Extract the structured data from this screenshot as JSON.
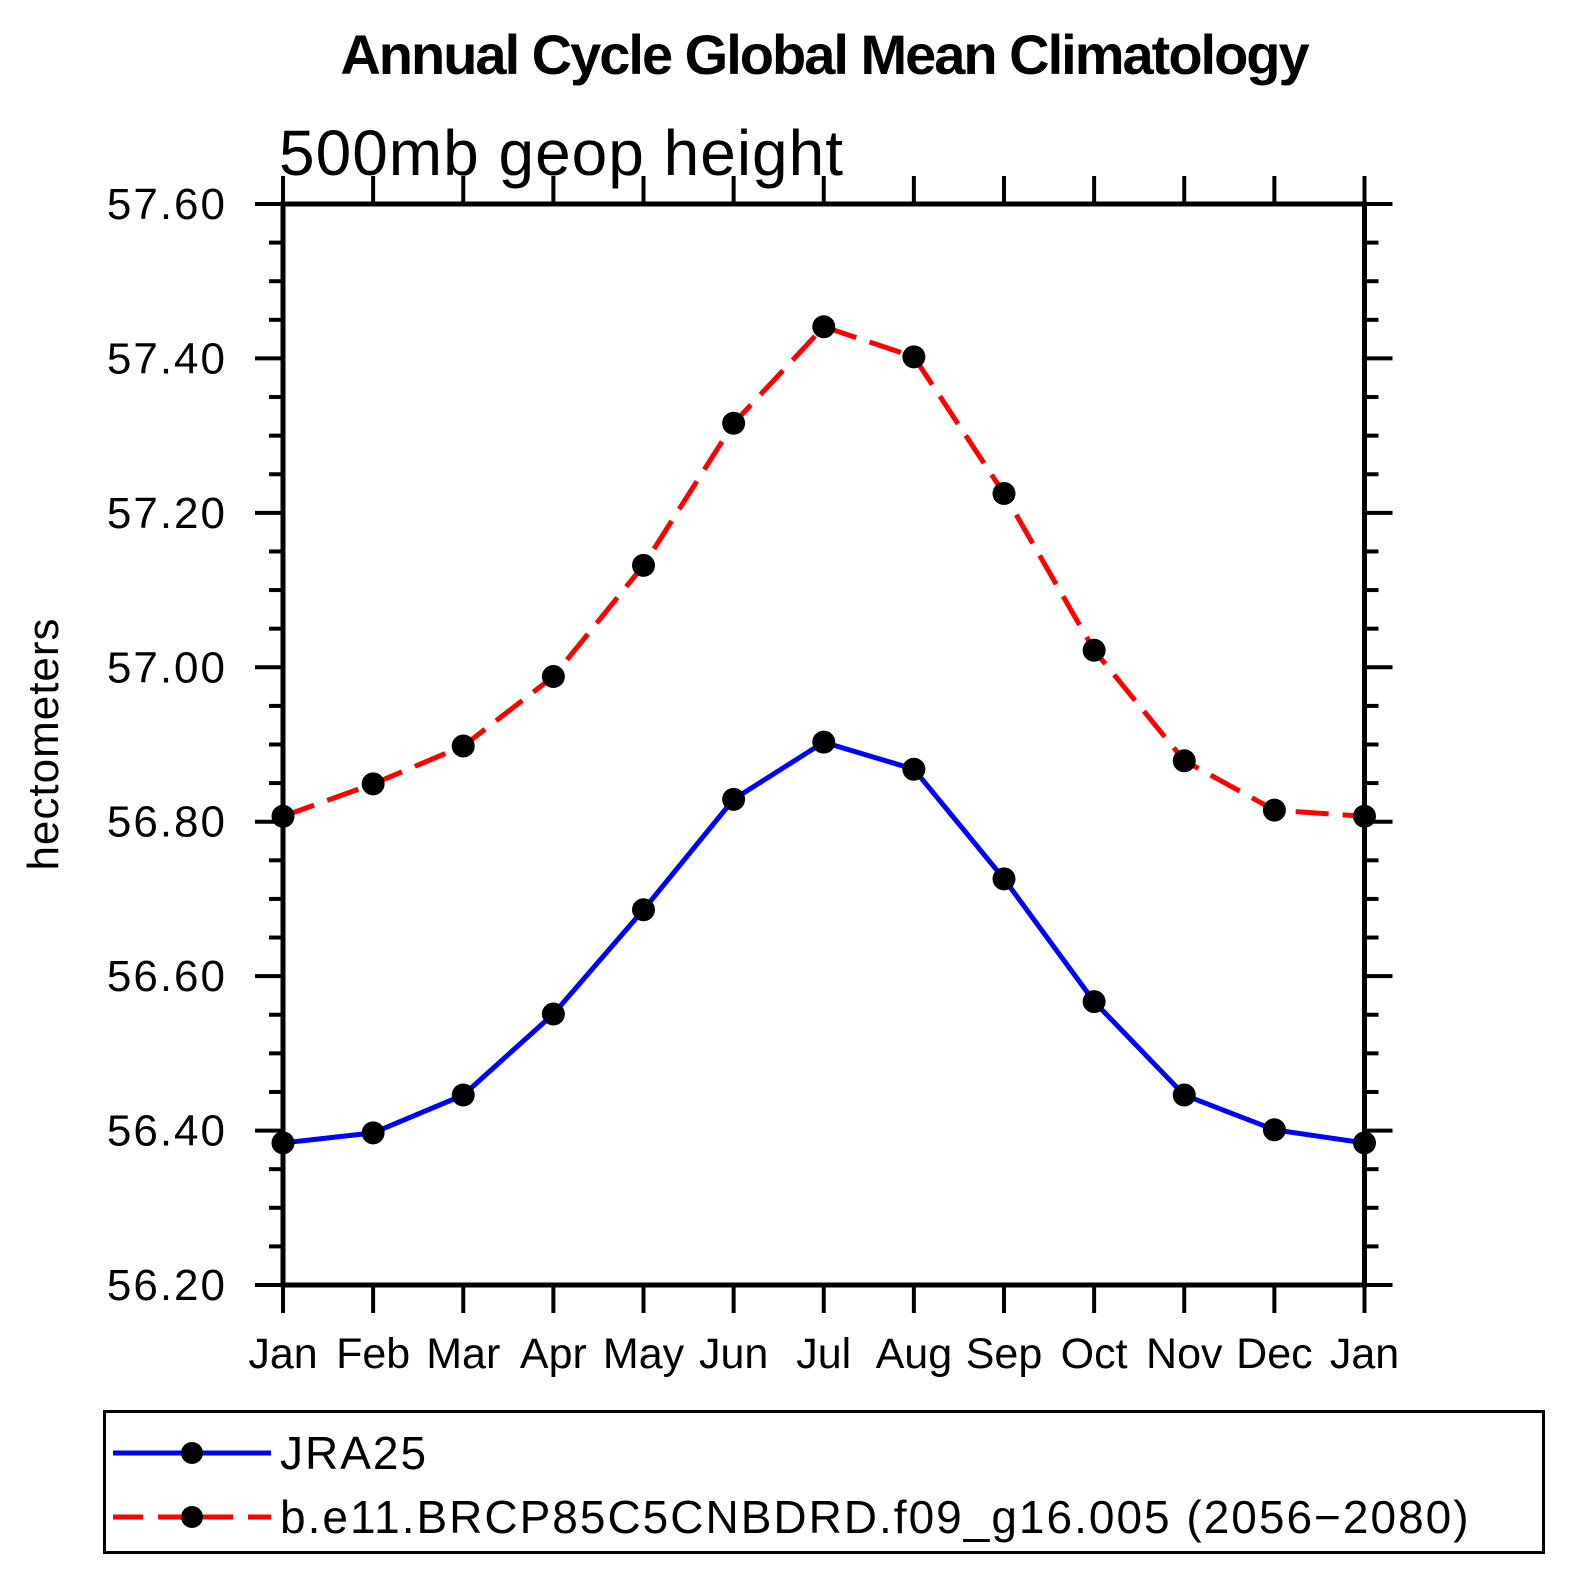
{
  "chart_data": {
    "type": "line",
    "title": "Annual Cycle Global Mean Climatology",
    "subtitle": "500mb geop height",
    "ylabel": "hectometers",
    "xlabel": "",
    "categories": [
      "Jan",
      "Feb",
      "Mar",
      "Apr",
      "May",
      "Jun",
      "Jul",
      "Aug",
      "Sep",
      "Oct",
      "Nov",
      "Dec",
      "Jan"
    ],
    "series": [
      {
        "name": "JRA25",
        "color": "#0000ff",
        "line_style": "solid",
        "marker": "filled-circle",
        "marker_color": "#000000",
        "values": [
          56.384,
          56.397,
          56.446,
          56.551,
          56.686,
          56.829,
          56.903,
          56.868,
          56.726,
          56.567,
          56.446,
          56.401,
          56.384
        ]
      },
      {
        "name": "b.e11.BRCP85C5CNBDRD.f09_g16.005 (2056−2080)",
        "color": "#ff0000",
        "line_style": "dashed",
        "marker": "filled-circle",
        "marker_color": "#000000",
        "values": [
          56.807,
          56.849,
          56.898,
          56.988,
          57.132,
          57.316,
          57.441,
          57.402,
          57.225,
          57.022,
          56.879,
          56.815,
          56.807
        ]
      }
    ],
    "ylim": [
      56.2,
      57.6
    ],
    "ytick_major_step": 0.2,
    "ytick_minor_step": 0.05,
    "ytick_labels": [
      "56.20",
      "56.40",
      "56.60",
      "56.80",
      "57.00",
      "57.20",
      "57.40",
      "57.60"
    ],
    "grid": false,
    "legend_position": "bottom-box",
    "axis_color": "#000000",
    "background_color": "#ffffff"
  }
}
